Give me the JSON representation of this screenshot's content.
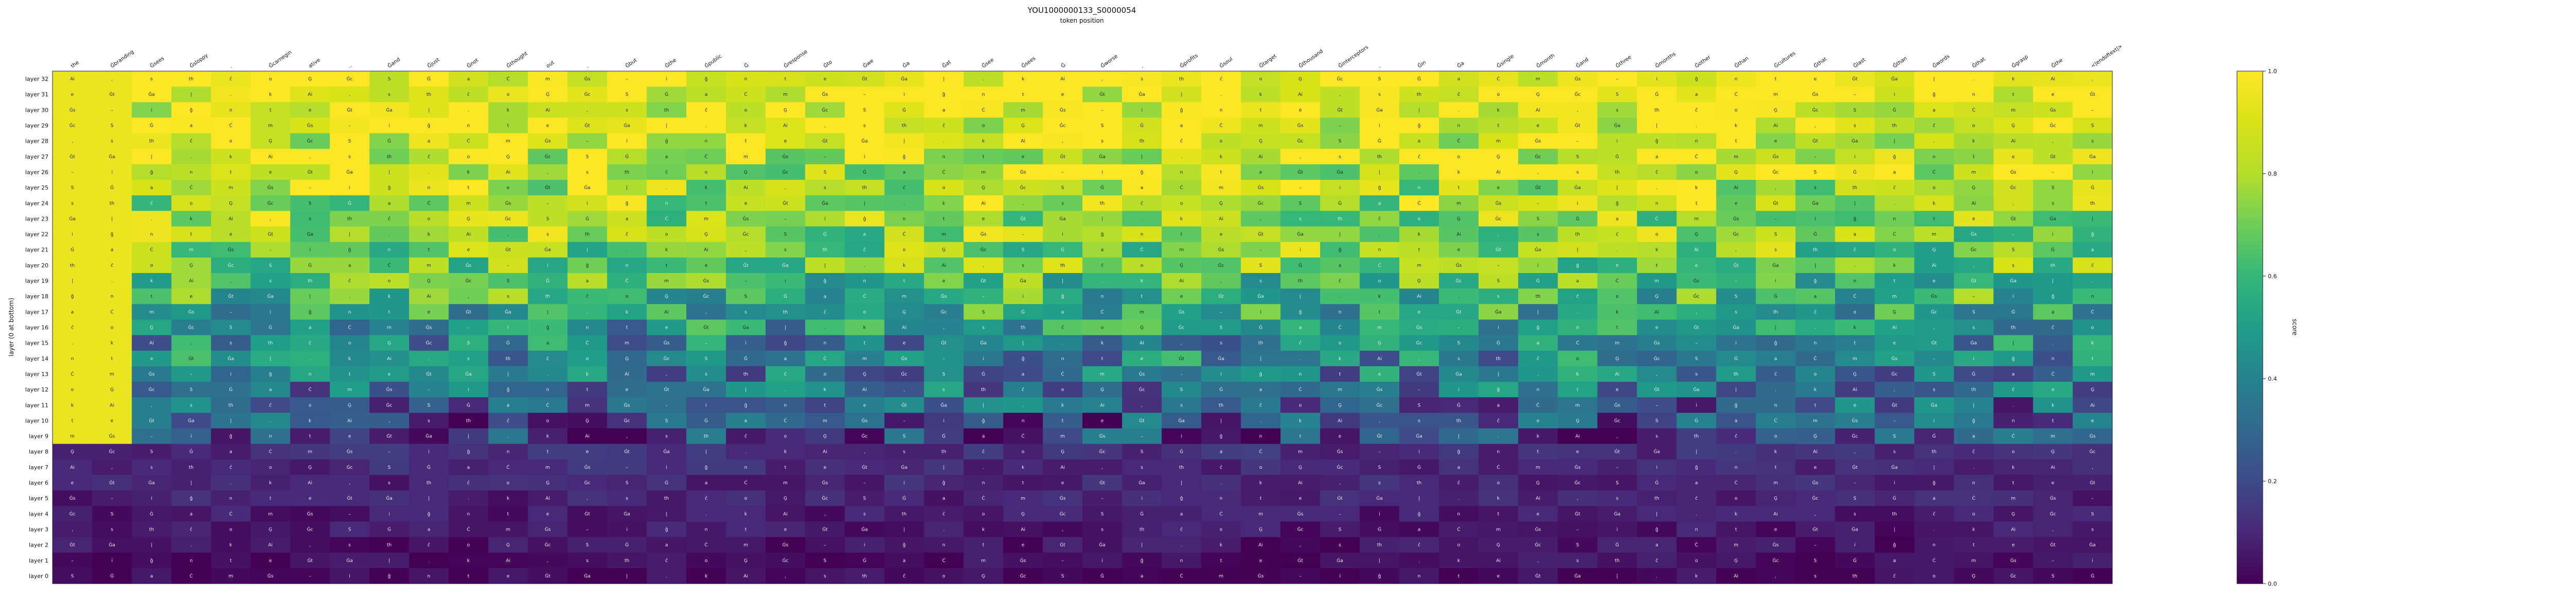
{
  "chart_data": {
    "type": "heatmap",
    "title": "YOU1000000133_S0000054",
    "subtitle": "token position",
    "ylabel": "layer (0 at bottom)",
    "colorbar_label": "score",
    "colorbar_ticks": [
      "0.0",
      "0.2",
      "0.4",
      "0.6",
      "0.8",
      "1.0"
    ],
    "colorbar_range": [
      0,
      1
    ],
    "colormap": "viridis",
    "x_tokens": [
      "the",
      "Ġbranding",
      "Ġsees",
      "Ġsloppy",
      ".",
      "Ġcarnegin",
      "ative",
      "..",
      "Ġand",
      "Ġjust",
      "Ġnot",
      "Ġthought",
      "out",
      ".",
      "Ġbut",
      "Ġthe",
      "Ġpublic",
      "Ġ",
      "Ġresponse",
      "Ġto",
      "Ġwe",
      "Ġa",
      "Ġat",
      "Ġsee",
      "Ġsees",
      "Ġ",
      "Ġworse",
      ".",
      "Ġprofits",
      "Ġsoul",
      "Ġtarget",
      "Ġthousand",
      "Ġinterceptors",
      ".",
      "Ġin",
      "Ġa",
      "Ġsingle",
      "Ġmonth",
      "Ġand",
      "Ġthree",
      "Ġmonths",
      "Ġother",
      "Ġthan",
      "Ġcultures",
      "Ġthat",
      "Ġlast",
      "Ġthan",
      "Ġwords",
      "Ġthat",
      "Ġgrasp",
      "Ġthe",
      "<|endoftext|>"
    ],
    "y_labels": [
      "layer 32",
      "layer 31",
      "layer 30",
      "layer 29",
      "layer 28",
      "layer 27",
      "layer 26",
      "layer 25",
      "layer 24",
      "layer 23",
      "layer 22",
      "layer 21",
      "layer 20",
      "layer 19",
      "layer 18",
      "layer 17",
      "layer 16",
      "layer 15",
      "layer 14",
      "layer 13",
      "layer 12",
      "layer 11",
      "layer 10",
      "layer 9",
      "layer 8",
      "layer 7",
      "layer 6",
      "layer 5",
      "layer 4",
      "layer 3",
      "layer 2",
      "layer 1",
      "layer 0"
    ],
    "cell_glyphs": [
      "Ai",
      "n",
      "Ġ",
      ",",
      "t",
      "a",
      "s",
      "e",
      "Ċ",
      "th",
      "Ġt",
      "m",
      "ĉ",
      "Ġa",
      "Ġs",
      "o",
      "|",
      "–",
      "Ģ",
      ".",
      "i",
      "Ġc",
      "k",
      "ĝ",
      "S"
    ],
    "scores_note": "score per cell, rows listed top (layer 32) to bottom (layer 0)"
  },
  "colors": {
    "low": "#440154",
    "high": "#fde725",
    "background": "#ffffff"
  }
}
